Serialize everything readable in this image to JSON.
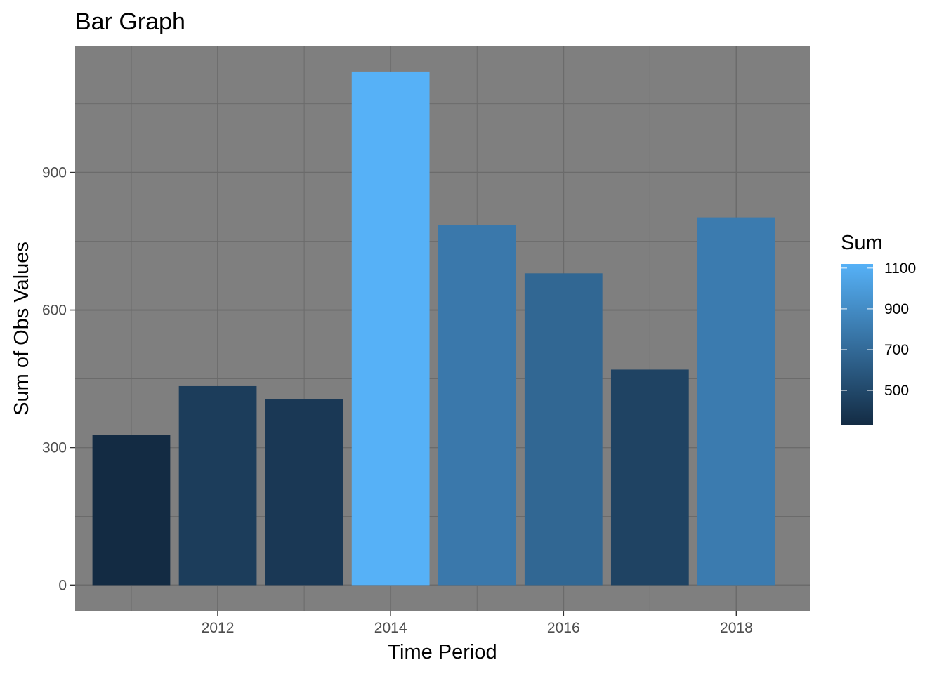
{
  "chart_data": {
    "type": "bar",
    "title": "Bar Graph",
    "xlabel": "Time Period",
    "ylabel": "Sum of Obs Values",
    "x": [
      2011,
      2012,
      2013,
      2014,
      2015,
      2016,
      2017,
      2018
    ],
    "values": [
      328,
      434,
      406,
      1120,
      785,
      680,
      470,
      802
    ],
    "x_range": [
      2010.35,
      2018.85
    ],
    "ylim": [
      -56,
      1175
    ],
    "x_ticks": [
      2012,
      2014,
      2016,
      2018
    ],
    "x_tick_labels": [
      "2012",
      "2014",
      "2016",
      "2018"
    ],
    "x_minor_ticks": [
      2011,
      2013,
      2015,
      2017
    ],
    "y_ticks": [
      0,
      300,
      600,
      900
    ],
    "y_tick_labels": [
      "0",
      "300",
      "600",
      "900"
    ],
    "y_minor_ticks": [
      150,
      450,
      750,
      1050
    ],
    "grid": true,
    "panel_background": "#7f7f7f",
    "grid_color": "#6b6b6b",
    "legend": {
      "title": "Sum",
      "placement": "right",
      "type": "colorbar",
      "range": [
        328,
        1120
      ],
      "color_low": "#132B43",
      "color_high": "#56B1F7",
      "ticks": [
        500,
        700,
        900,
        1100
      ],
      "tick_labels": [
        "500",
        "700",
        "900",
        "1100"
      ]
    }
  }
}
